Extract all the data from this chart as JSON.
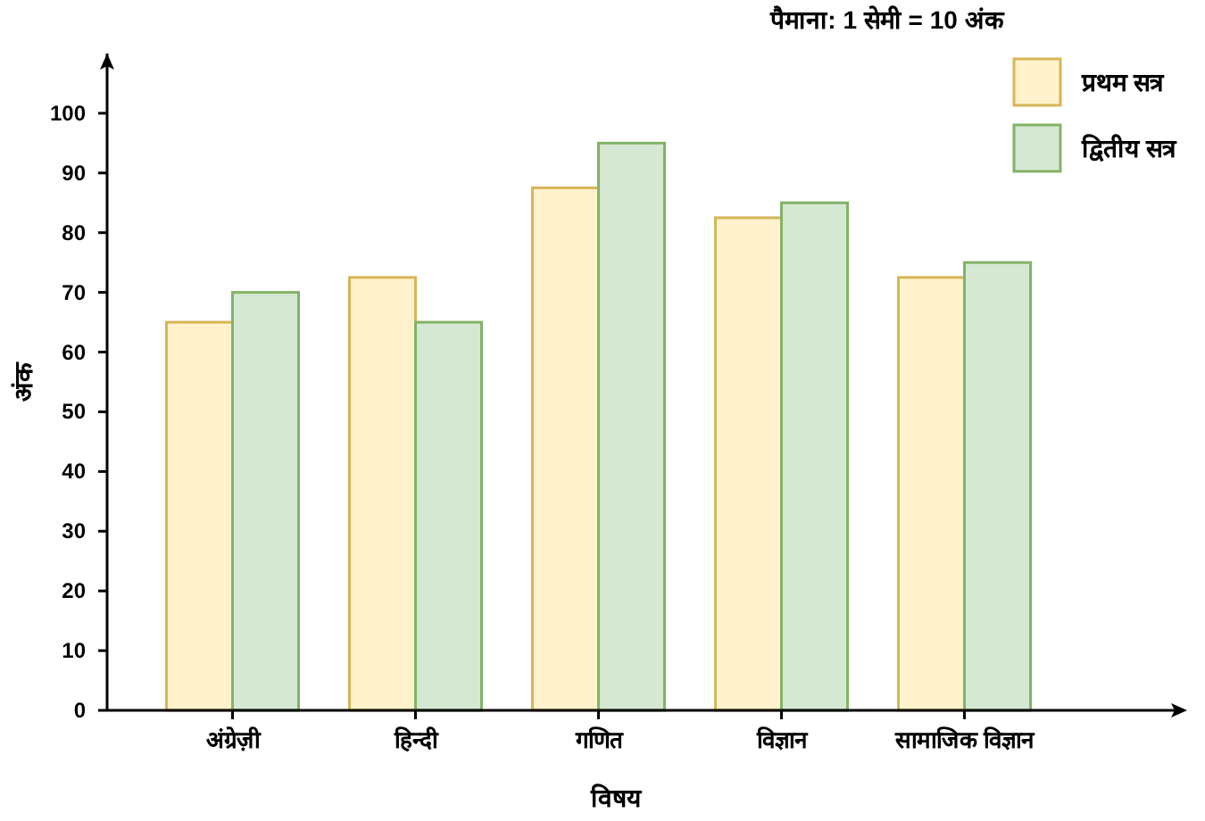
{
  "chart_data": {
    "type": "bar",
    "title": "पैमाना: 1 सेमी = 10 अंक",
    "xlabel": "विषय",
    "ylabel": "अंक",
    "categories": [
      "अंग्रेज़ी",
      "हिन्दी",
      "गणित",
      "विज्ञान",
      "सामाजिक विज्ञान"
    ],
    "series": [
      {
        "name": "प्रथम सत्र",
        "color": "#fff2cc",
        "values": [
          65,
          72.5,
          87.5,
          82.5,
          72.5
        ]
      },
      {
        "name": "द्वितीय सत्र",
        "color": "#d5e8d4",
        "values": [
          70,
          65,
          95,
          85,
          75
        ]
      }
    ],
    "ylim": [
      0,
      110
    ],
    "yticks": [
      0,
      10,
      20,
      30,
      40,
      50,
      60,
      70,
      80,
      90,
      100
    ],
    "grid": false,
    "legend": "top right"
  }
}
